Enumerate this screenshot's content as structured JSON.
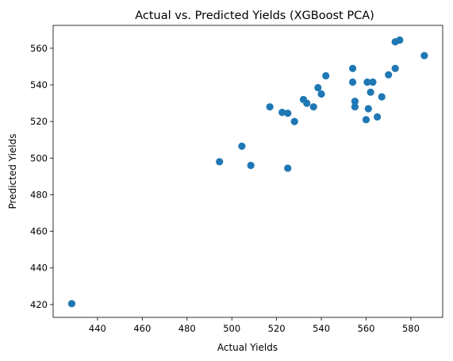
{
  "chart_data": {
    "type": "scatter",
    "title": "Actual vs. Predicted Yields (XGBoost PCA)",
    "xlabel": "Actual Yields",
    "ylabel": "Predicted Yields",
    "xlim": [
      420.2,
      594.2
    ],
    "ylim": [
      413.0,
      572.5
    ],
    "xticks": [
      440,
      460,
      480,
      500,
      520,
      540,
      560,
      580
    ],
    "yticks": [
      420,
      440,
      460,
      480,
      500,
      520,
      540,
      560
    ],
    "marker_color": "#1f77b4",
    "grid": false,
    "points": [
      {
        "x": 428.5,
        "y": 420.5
      },
      {
        "x": 494.5,
        "y": 498.0
      },
      {
        "x": 504.5,
        "y": 506.5
      },
      {
        "x": 508.5,
        "y": 496.0
      },
      {
        "x": 517.0,
        "y": 528.0
      },
      {
        "x": 522.5,
        "y": 525.0
      },
      {
        "x": 525.0,
        "y": 524.5
      },
      {
        "x": 525.0,
        "y": 494.5
      },
      {
        "x": 528.0,
        "y": 520.0
      },
      {
        "x": 532.0,
        "y": 532.0
      },
      {
        "x": 533.5,
        "y": 530.0
      },
      {
        "x": 536.5,
        "y": 528.0
      },
      {
        "x": 538.5,
        "y": 538.5
      },
      {
        "x": 540.0,
        "y": 535.0
      },
      {
        "x": 542.0,
        "y": 545.0
      },
      {
        "x": 554.0,
        "y": 549.0
      },
      {
        "x": 554.0,
        "y": 541.5
      },
      {
        "x": 555.0,
        "y": 531.0
      },
      {
        "x": 555.0,
        "y": 528.0
      },
      {
        "x": 560.0,
        "y": 521.0
      },
      {
        "x": 560.5,
        "y": 541.5
      },
      {
        "x": 561.0,
        "y": 527.0
      },
      {
        "x": 562.0,
        "y": 536.0
      },
      {
        "x": 563.0,
        "y": 541.5
      },
      {
        "x": 565.0,
        "y": 522.5
      },
      {
        "x": 567.0,
        "y": 533.5
      },
      {
        "x": 570.0,
        "y": 545.5
      },
      {
        "x": 573.0,
        "y": 563.5
      },
      {
        "x": 573.0,
        "y": 549.0
      },
      {
        "x": 575.0,
        "y": 564.5
      },
      {
        "x": 586.0,
        "y": 556.0
      }
    ]
  }
}
